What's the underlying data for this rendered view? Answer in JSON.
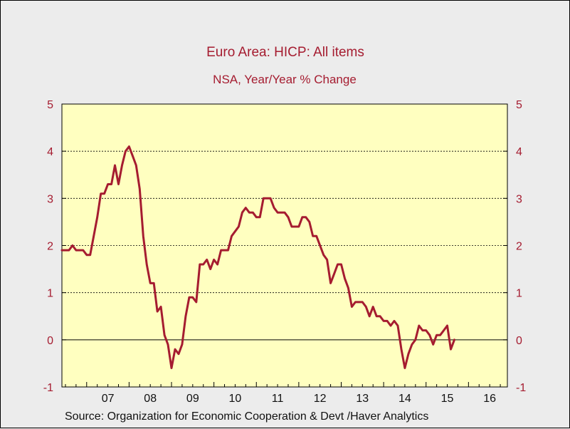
{
  "chart_data": {
    "type": "line",
    "title": "Euro Area: HICP: All items",
    "subtitle": "NSA, Year/Year % Change",
    "source": "Source:  Organization for Economic Cooperation & Devt /Haver Analytics",
    "ylim": [
      -1,
      5
    ],
    "yticks": [
      -1,
      0,
      1,
      2,
      3,
      4,
      5
    ],
    "ytick_labels": [
      "-1",
      "0",
      "1",
      "2",
      "3",
      "4",
      "5"
    ],
    "xlim": [
      "2006-06",
      "2016-12"
    ],
    "xtick_labels": [
      "07",
      "08",
      "09",
      "10",
      "11",
      "12",
      "13",
      "14",
      "15",
      "16"
    ],
    "xtick_years": [
      2007,
      2008,
      2009,
      2010,
      2011,
      2012,
      2013,
      2014,
      2015,
      2016
    ],
    "grid": "horizontal dotted at 1, 2, 3, 4",
    "zero_line": true,
    "colors": {
      "plot_background": "#ffffc0",
      "line": "#a51c30",
      "text": "#a51c30",
      "page_background": "#ececec"
    },
    "series": [
      {
        "start": "2006-06",
        "frequency": "monthly",
        "values": [
          1.9,
          1.9,
          1.9,
          2.0,
          1.9,
          1.9,
          1.9,
          1.8,
          1.8,
          2.2,
          2.6,
          3.1,
          3.1,
          3.3,
          3.3,
          3.7,
          3.3,
          3.7,
          4.0,
          4.1,
          3.9,
          3.7,
          3.2,
          2.2,
          1.6,
          1.2,
          1.2,
          0.6,
          0.7,
          0.1,
          -0.1,
          -0.6,
          -0.2,
          -0.3,
          -0.1,
          0.5,
          0.9,
          0.9,
          0.8,
          1.6,
          1.6,
          1.7,
          1.5,
          1.7,
          1.6,
          1.9,
          1.9,
          1.9,
          2.2,
          2.3,
          2.4,
          2.7,
          2.8,
          2.7,
          2.7,
          2.6,
          2.6,
          3.0,
          3.0,
          3.0,
          2.8,
          2.7,
          2.7,
          2.7,
          2.6,
          2.4,
          2.4,
          2.4,
          2.6,
          2.6,
          2.5,
          2.2,
          2.2,
          2.0,
          1.8,
          1.7,
          1.2,
          1.4,
          1.6,
          1.6,
          1.3,
          1.1,
          0.7,
          0.8,
          0.8,
          0.8,
          0.7,
          0.5,
          0.7,
          0.5,
          0.5,
          0.4,
          0.4,
          0.3,
          0.4,
          0.3,
          -0.2,
          -0.6,
          -0.3,
          -0.1,
          0.0,
          0.3,
          0.2,
          0.2,
          0.1,
          -0.1,
          0.1,
          0.1,
          0.2,
          0.3,
          -0.2,
          0.0
        ]
      }
    ]
  }
}
